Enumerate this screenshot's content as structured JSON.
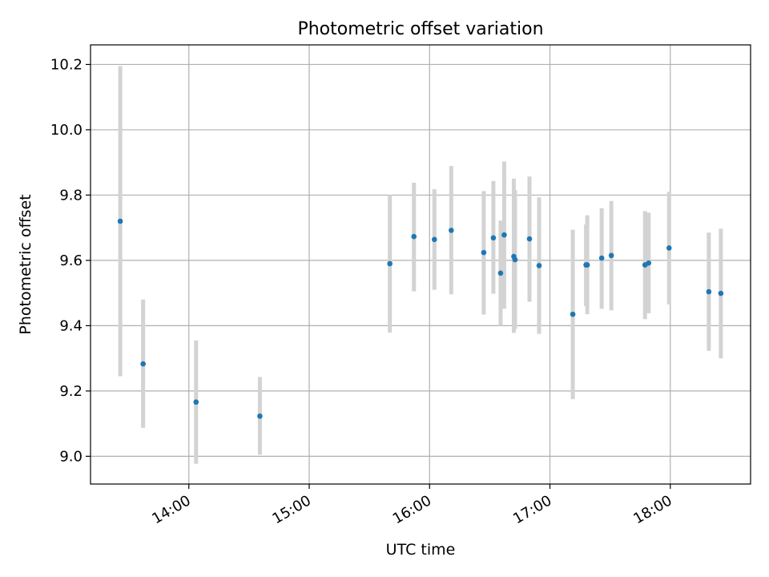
{
  "chart_data": {
    "type": "scatter",
    "title": "Photometric offset variation",
    "xlabel": "UTC time",
    "ylabel": "Photometric offset",
    "grid": true,
    "legend": "none",
    "x_unit": "hours UTC",
    "xlim": [
      13.183,
      18.667
    ],
    "ylim": [
      8.915,
      10.26
    ],
    "x_ticks": [
      {
        "value": 14,
        "label": "14:00"
      },
      {
        "value": 15,
        "label": "15:00"
      },
      {
        "value": 16,
        "label": "16:00"
      },
      {
        "value": 17,
        "label": "17:00"
      },
      {
        "value": 18,
        "label": "18:00"
      }
    ],
    "y_ticks": [
      {
        "value": 9.0,
        "label": "9.0"
      },
      {
        "value": 9.2,
        "label": "9.2"
      },
      {
        "value": 9.4,
        "label": "9.4"
      },
      {
        "value": 9.6,
        "label": "9.6"
      },
      {
        "value": 9.8,
        "label": "9.8"
      },
      {
        "value": 10.0,
        "label": "10.0"
      },
      {
        "value": 10.2,
        "label": "10.2"
      }
    ],
    "colors": {
      "point": "#1f77b4",
      "errorbar": "#d3d3d3",
      "grid": "#b0b0b0"
    },
    "series": [
      {
        "points": [
          {
            "x": 13.43,
            "y": 9.72,
            "ylo": 9.245,
            "yhi": 10.195
          },
          {
            "x": 13.62,
            "y": 9.283,
            "ylo": 9.087,
            "yhi": 9.48
          },
          {
            "x": 14.06,
            "y": 9.166,
            "ylo": 8.977,
            "yhi": 9.355
          },
          {
            "x": 14.59,
            "y": 9.123,
            "ylo": 9.005,
            "yhi": 9.243
          },
          {
            "x": 15.67,
            "y": 9.59,
            "ylo": 9.379,
            "yhi": 9.8
          },
          {
            "x": 15.87,
            "y": 9.673,
            "ylo": 9.505,
            "yhi": 9.838
          },
          {
            "x": 16.04,
            "y": 9.664,
            "ylo": 9.51,
            "yhi": 9.818
          },
          {
            "x": 16.18,
            "y": 9.692,
            "ylo": 9.496,
            "yhi": 9.889
          },
          {
            "x": 16.45,
            "y": 9.624,
            "ylo": 9.434,
            "yhi": 9.812
          },
          {
            "x": 16.53,
            "y": 9.669,
            "ylo": 9.498,
            "yhi": 9.843
          },
          {
            "x": 16.59,
            "y": 9.561,
            "ylo": 9.4,
            "yhi": 9.722
          },
          {
            "x": 16.62,
            "y": 9.678,
            "ylo": 9.452,
            "yhi": 9.903
          },
          {
            "x": 16.7,
            "y": 9.612,
            "ylo": 9.378,
            "yhi": 9.85
          },
          {
            "x": 16.71,
            "y": 9.602,
            "ylo": 9.39,
            "yhi": 9.815
          },
          {
            "x": 16.83,
            "y": 9.666,
            "ylo": 9.473,
            "yhi": 9.857
          },
          {
            "x": 16.91,
            "y": 9.584,
            "ylo": 9.375,
            "yhi": 9.793
          },
          {
            "x": 17.19,
            "y": 9.435,
            "ylo": 9.175,
            "yhi": 9.694
          },
          {
            "x": 17.3,
            "y": 9.586,
            "ylo": 9.46,
            "yhi": 9.71
          },
          {
            "x": 17.31,
            "y": 9.586,
            "ylo": 9.435,
            "yhi": 9.738
          },
          {
            "x": 17.43,
            "y": 9.607,
            "ylo": 9.452,
            "yhi": 9.76
          },
          {
            "x": 17.51,
            "y": 9.615,
            "ylo": 9.447,
            "yhi": 9.782
          },
          {
            "x": 17.79,
            "y": 9.586,
            "ylo": 9.42,
            "yhi": 9.751
          },
          {
            "x": 17.82,
            "y": 9.592,
            "ylo": 9.438,
            "yhi": 9.746
          },
          {
            "x": 17.99,
            "y": 9.638,
            "ylo": 9.465,
            "yhi": 9.81
          },
          {
            "x": 18.32,
            "y": 9.504,
            "ylo": 9.323,
            "yhi": 9.685
          },
          {
            "x": 18.42,
            "y": 9.499,
            "ylo": 9.3,
            "yhi": 9.697
          }
        ]
      }
    ]
  }
}
